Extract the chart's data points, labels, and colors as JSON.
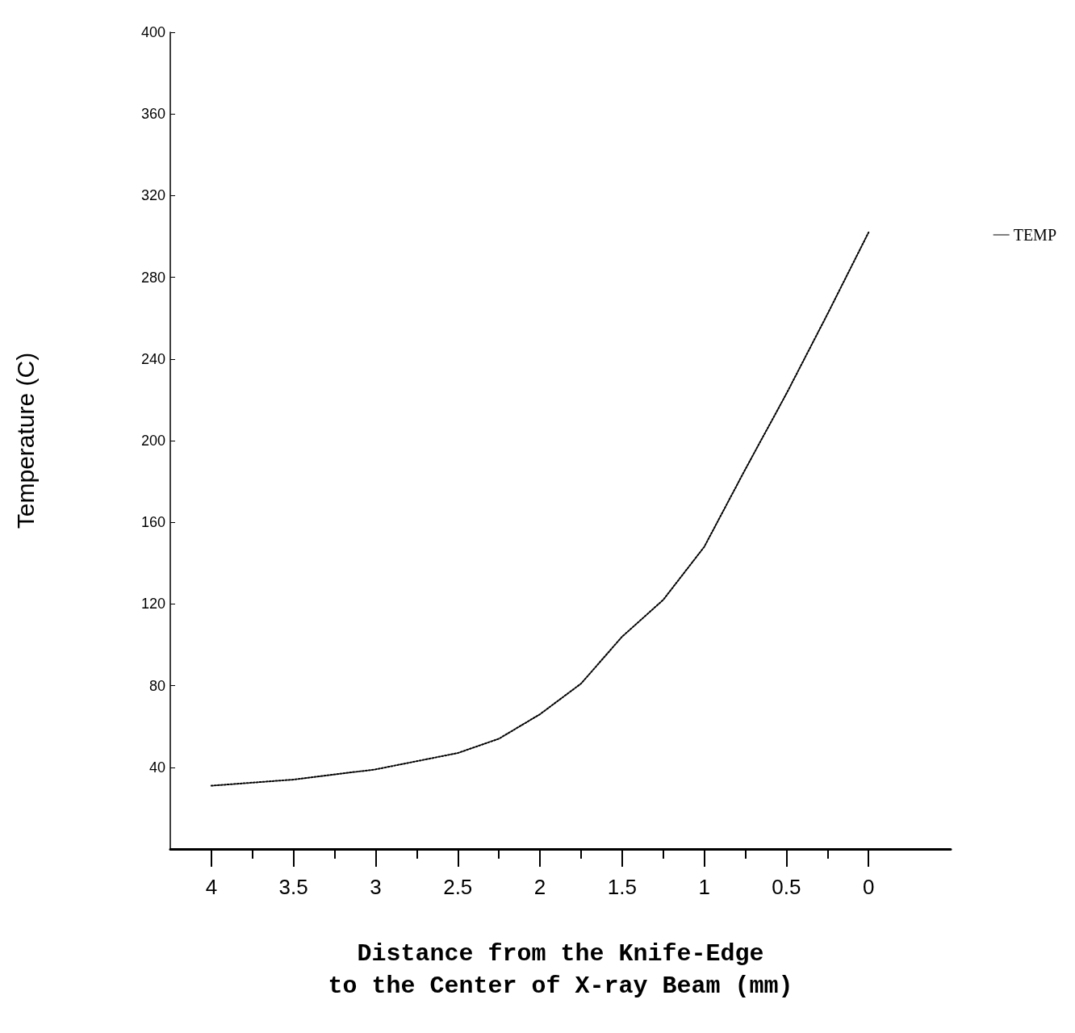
{
  "chart_data": {
    "type": "line",
    "xlabel": "Distance from the Knife-Edge\nto the Center of X-ray Beam (mm)",
    "ylabel": "Temperature (C)",
    "x": [
      4,
      3.5,
      3,
      2.5,
      2.25,
      2,
      1.75,
      1.5,
      1.25,
      1,
      0.75,
      0.5,
      0.25,
      0
    ],
    "series": [
      {
        "name": "TEMP",
        "color": "#000000",
        "values": [
          31,
          34,
          39,
          47,
          54,
          66,
          81,
          104,
          122,
          148,
          186,
          223,
          262,
          302
        ]
      }
    ],
    "xlim": [
      4.25,
      -0.5
    ],
    "xticks": [
      4,
      {
        "value": 3.75,
        "label": null
      },
      3.5,
      {
        "value": 3.25,
        "label": null
      },
      3,
      {
        "value": 2.75,
        "label": null
      },
      2.5,
      {
        "value": 2.25,
        "label": null
      },
      2,
      {
        "value": 1.75,
        "label": null
      },
      1.5,
      {
        "value": 1.25,
        "label": null
      },
      1,
      {
        "value": 0.75,
        "label": null
      },
      0.5,
      {
        "value": 0.25,
        "label": null
      },
      0
    ],
    "ylim": [
      0,
      400
    ],
    "yticks": [
      40,
      80,
      120,
      160,
      200,
      240,
      280,
      320,
      360,
      400
    ],
    "grid": false,
    "legend": "top right",
    "line_style": "dotted",
    "marker": "none"
  }
}
